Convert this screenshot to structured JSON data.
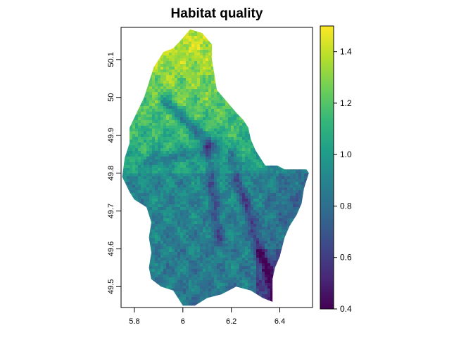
{
  "title": "Habitat quality",
  "chart_data": {
    "type": "heatmap",
    "xticks": [
      "5.8",
      "6",
      "6.2",
      "6.4"
    ],
    "yticks": [
      "49.5",
      "49.6",
      "49.7",
      "49.8",
      "49.9",
      "50",
      "50.1"
    ],
    "xlim": [
      5.745,
      6.535
    ],
    "ylim": [
      49.445,
      50.185
    ],
    "legend": {
      "range": [
        0.4,
        1.5
      ],
      "ticks": [
        "0.4",
        "0.6",
        "0.8",
        "1.0",
        "1.2",
        "1.4"
      ],
      "colors": [
        "#440154",
        "#482878",
        "#3e4989",
        "#31688e",
        "#26828e",
        "#1f9e89",
        "#35b779",
        "#6ece58",
        "#b5de2b",
        "#fde725"
      ]
    },
    "outline": [
      [
        6.03,
        50.18
      ],
      [
        6.08,
        50.17
      ],
      [
        6.12,
        50.14
      ],
      [
        6.12,
        50.1
      ],
      [
        6.13,
        50.06
      ],
      [
        6.14,
        50.02
      ],
      [
        6.18,
        49.99
      ],
      [
        6.22,
        49.96
      ],
      [
        6.25,
        49.94
      ],
      [
        6.27,
        49.92
      ],
      [
        6.28,
        49.89
      ],
      [
        6.3,
        49.86
      ],
      [
        6.32,
        49.84
      ],
      [
        6.34,
        49.82
      ],
      [
        6.39,
        49.82
      ],
      [
        6.42,
        49.81
      ],
      [
        6.51,
        49.81
      ],
      [
        6.52,
        49.8
      ],
      [
        6.5,
        49.76
      ],
      [
        6.49,
        49.72
      ],
      [
        6.47,
        49.69
      ],
      [
        6.44,
        49.66
      ],
      [
        6.42,
        49.63
      ],
      [
        6.4,
        49.58
      ],
      [
        6.38,
        49.55
      ],
      [
        6.37,
        49.52
      ],
      [
        6.37,
        49.46
      ],
      [
        6.33,
        49.47
      ],
      [
        6.28,
        49.49
      ],
      [
        6.22,
        49.5
      ],
      [
        6.16,
        49.48
      ],
      [
        6.1,
        49.47
      ],
      [
        6.05,
        49.45
      ],
      [
        6.0,
        49.45
      ],
      [
        5.96,
        49.49
      ],
      [
        5.91,
        49.5
      ],
      [
        5.87,
        49.52
      ],
      [
        5.86,
        49.55
      ],
      [
        5.87,
        49.59
      ],
      [
        5.86,
        49.63
      ],
      [
        5.87,
        49.67
      ],
      [
        5.85,
        49.71
      ],
      [
        5.8,
        49.73
      ],
      [
        5.78,
        49.75
      ],
      [
        5.75,
        49.79
      ],
      [
        5.76,
        49.84
      ],
      [
        5.78,
        49.88
      ],
      [
        5.78,
        49.92
      ],
      [
        5.81,
        49.96
      ],
      [
        5.84,
        50.0
      ],
      [
        5.86,
        50.04
      ],
      [
        5.88,
        50.08
      ],
      [
        5.92,
        50.12
      ],
      [
        5.96,
        50.13
      ],
      [
        5.99,
        50.15
      ]
    ]
  }
}
